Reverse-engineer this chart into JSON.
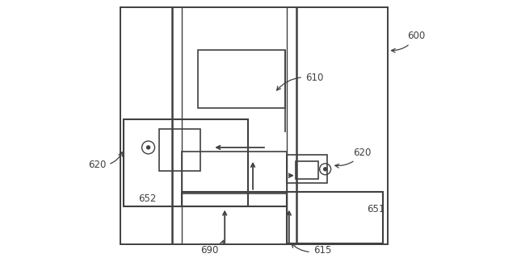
{
  "bg_color": "#ffffff",
  "line_color": "#404040",
  "figsize": [
    6.4,
    3.25
  ],
  "dpi": 100,
  "annotation_fs": 8.5
}
